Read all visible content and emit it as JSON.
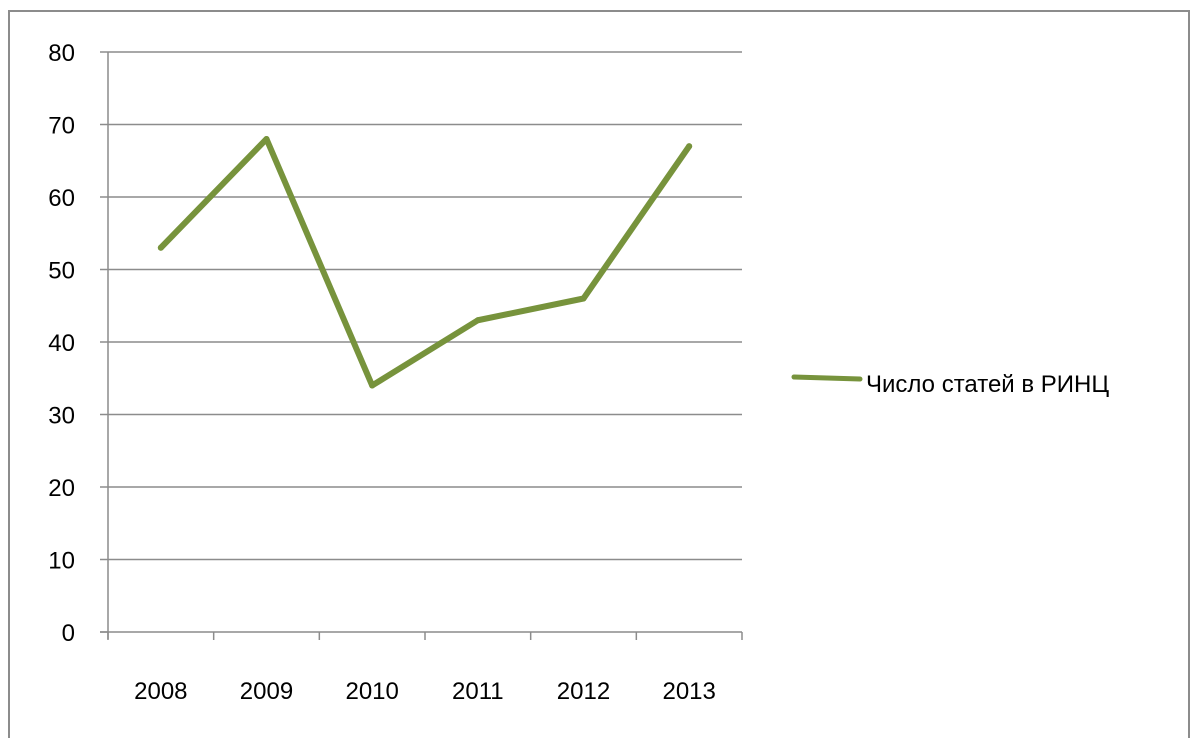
{
  "chart_data": {
    "type": "line",
    "title": "",
    "xlabel": "",
    "ylabel": "",
    "categories": [
      "2008",
      "2009",
      "2010",
      "2011",
      "2012",
      "2013"
    ],
    "series": [
      {
        "name": "Число статей в РИНЦ",
        "values": [
          53,
          68,
          34,
          43,
          46,
          67
        ],
        "color": "#77933c"
      }
    ],
    "ylim": [
      0,
      80
    ],
    "yticks": [
      "0",
      "10",
      "20",
      "30",
      "40",
      "50",
      "60",
      "70",
      "80"
    ],
    "grid": true,
    "legend": "right"
  }
}
